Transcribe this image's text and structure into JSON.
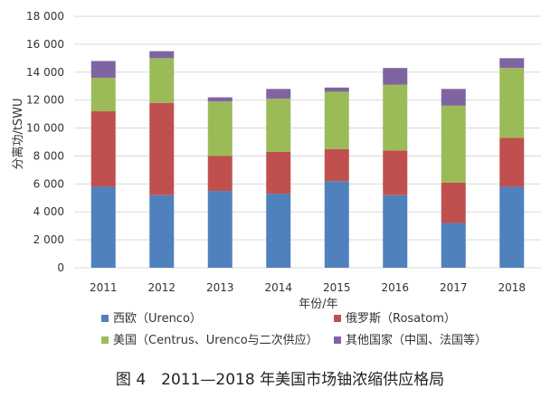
{
  "chart_data": {
    "type": "bar",
    "stacked": true,
    "categories": [
      "2011",
      "2012",
      "2013",
      "2014",
      "2015",
      "2016",
      "2017",
      "2018"
    ],
    "series": [
      {
        "name": "西欧（Urenco）",
        "color": "#4f81bd",
        "values": [
          5800,
          5200,
          5500,
          5300,
          6200,
          5200,
          3200,
          5800
        ]
      },
      {
        "name": "俄罗斯（Rosatom）",
        "color": "#c0504d",
        "values": [
          5400,
          6600,
          2500,
          3000,
          2300,
          3200,
          2900,
          3500
        ]
      },
      {
        "name": "美国（Centrus、Urenco与二次供应）",
        "color": "#9bbb59",
        "values": [
          2400,
          3200,
          3900,
          3800,
          4100,
          4700,
          5500,
          5000
        ]
      },
      {
        "name": "其他国家（中国、法国等）",
        "color": "#8064a2",
        "values": [
          1200,
          500,
          300,
          700,
          300,
          1200,
          1200,
          700
        ]
      }
    ],
    "y_ticks": [
      "0",
      "2 000",
      "4 000",
      "6 000",
      "8 000",
      "10 000",
      "12 000",
      "14 000",
      "16 000",
      "18 000"
    ],
    "ylim": [
      0,
      18000
    ],
    "xlabel": "年份/年",
    "ylabel": "分离功/tSWU",
    "legend_position": "bottom",
    "grid": true,
    "grid_color": "#d9d9d9"
  },
  "caption": "图 4　2011—2018 年美国市场铀浓缩供应格局"
}
